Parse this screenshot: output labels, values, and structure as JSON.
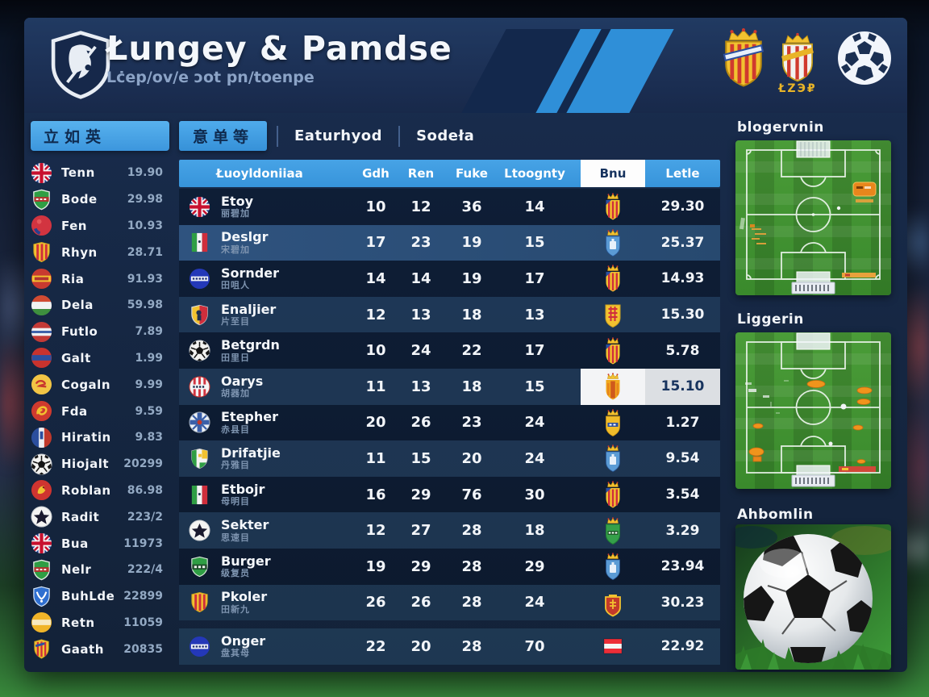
{
  "header": {
    "title": "Łungey & Pamdse",
    "subtitle": "Lċep/ov/e ɔot pn/toenpe",
    "badge_caption": "ŁZЭ₽"
  },
  "sidebar": {
    "header_label": "立如英",
    "items": [
      {
        "name": "Tenn",
        "value": "19.90",
        "icon": "uk"
      },
      {
        "name": "Bode",
        "value": "29.98",
        "icon": "shield-green"
      },
      {
        "name": "Fen",
        "value": "10.93",
        "icon": "red-circle"
      },
      {
        "name": "Rhyn",
        "value": "28.71",
        "icon": "shield-yellow-stripes"
      },
      {
        "name": "Ria",
        "value": "91.93",
        "icon": "red-yellow-band"
      },
      {
        "name": "Dela",
        "value": "59.98",
        "icon": "tricolor"
      },
      {
        "name": "Futlo",
        "value": "7.89",
        "icon": "stripes-rwb"
      },
      {
        "name": "Galt",
        "value": "1.99",
        "icon": "red-blue-band"
      },
      {
        "name": "Cogaln",
        "value": "9.99",
        "icon": "yellow-mark"
      },
      {
        "name": "Fda",
        "value": "9.59",
        "icon": "red-swirl"
      },
      {
        "name": "Hiratin",
        "value": "9.83",
        "icon": "blue-red-vert"
      },
      {
        "name": "Hiojalt",
        "value": "20299",
        "icon": "ball"
      },
      {
        "name": "Roblan",
        "value": "86.98",
        "icon": "red-bird"
      },
      {
        "name": "Radit",
        "value": "223/2",
        "icon": "ball-star"
      },
      {
        "name": "Bua",
        "value": "11973",
        "icon": "uk"
      },
      {
        "name": "Nelr",
        "value": "222/4",
        "icon": "shield-green"
      },
      {
        "name": "BuhLde",
        "value": "22899",
        "icon": "blue-shield"
      },
      {
        "name": "Retn",
        "value": "11059",
        "icon": "yellow-circle"
      },
      {
        "name": "Gaath",
        "value": "20835",
        "icon": "crest-striped"
      }
    ]
  },
  "tabs": {
    "active": "意单等",
    "tab2": "Eaturhyod",
    "tab3": "Sodeła"
  },
  "table": {
    "columns": [
      "Łuoyldoniiaa",
      "Gdh",
      "Ren",
      "Fuke",
      "Ltoognty",
      "Bnu",
      "Letle"
    ],
    "rows": [
      {
        "team": "Etoy",
        "sub": "丽碧加",
        "icon": "uk",
        "stats": [
          "10",
          "12",
          "36",
          "14"
        ],
        "crest": "atletico",
        "value": "29.30"
      },
      {
        "team": "Deslgr",
        "sub": "宋碧加",
        "icon": "italy",
        "stats": [
          "17",
          "23",
          "19",
          "15"
        ],
        "crest": "blue",
        "value": "25.37",
        "highlight": true
      },
      {
        "team": "Sornder",
        "sub": "田咀人",
        "icon": "blue-circle",
        "stats": [
          "14",
          "14",
          "19",
          "17"
        ],
        "crest": "atletico",
        "value": "14.93"
      },
      {
        "team": "Enaljier",
        "sub": "片至目",
        "icon": "shield-yellow-red",
        "stats": [
          "12",
          "13",
          "18",
          "13"
        ],
        "crest": "yellow-cross",
        "value": "15.30"
      },
      {
        "team": "Betgrdn",
        "sub": "田里日",
        "icon": "ball",
        "stats": [
          "10",
          "24",
          "22",
          "17"
        ],
        "crest": "atletico",
        "value": "5.78"
      },
      {
        "team": "Oarys",
        "sub": "胡器加",
        "icon": "club",
        "stats": [
          "11",
          "13",
          "18",
          "15"
        ],
        "crest": "orange",
        "value": "15.10",
        "selected": true
      },
      {
        "team": "Etepher",
        "sub": "赤县目",
        "icon": "cross-circle",
        "stats": [
          "20",
          "26",
          "23",
          "24"
        ],
        "crest": "yellow",
        "value": "1.27"
      },
      {
        "team": "Drifatjie",
        "sub": "丹雅目",
        "icon": "shield-green-yellow",
        "stats": [
          "11",
          "15",
          "20",
          "24"
        ],
        "crest": "blue",
        "value": "9.54"
      },
      {
        "team": "Etbojr",
        "sub": "母明目",
        "icon": "italy",
        "stats": [
          "16",
          "29",
          "76",
          "30"
        ],
        "crest": "atletico",
        "value": "3.54"
      },
      {
        "team": "Sekter",
        "sub": "思速目",
        "icon": "ball-star",
        "stats": [
          "12",
          "27",
          "28",
          "18"
        ],
        "crest": "green",
        "value": "3.29"
      },
      {
        "team": "Burger",
        "sub": "级复员",
        "icon": "green-ooo",
        "stats": [
          "19",
          "29",
          "28",
          "29"
        ],
        "crest": "blue",
        "value": "23.94"
      },
      {
        "team": "Pkoler",
        "sub": "田新九",
        "icon": "shield-yellow-stripes",
        "stats": [
          "26",
          "26",
          "28",
          "24"
        ],
        "crest": "red",
        "value": "30.23"
      },
      {
        "team": "Onger",
        "sub": "盘其母",
        "icon": "blue-circle",
        "stats": [
          "22",
          "20",
          "28",
          "70"
        ],
        "crest": "austria",
        "value": "22.92",
        "gap": true
      }
    ]
  },
  "panels": {
    "panel1_title": "blogervnin",
    "panel2_title": "Liggerin",
    "panel3_title": "Ahbomlin"
  },
  "colors": {
    "accent_blue": "#3E9EE2",
    "panel_navy": "#16283F",
    "highlight_row": "#2C4B74",
    "crest_yellow": "#F2C230",
    "crest_red": "#CF2E3C"
  }
}
